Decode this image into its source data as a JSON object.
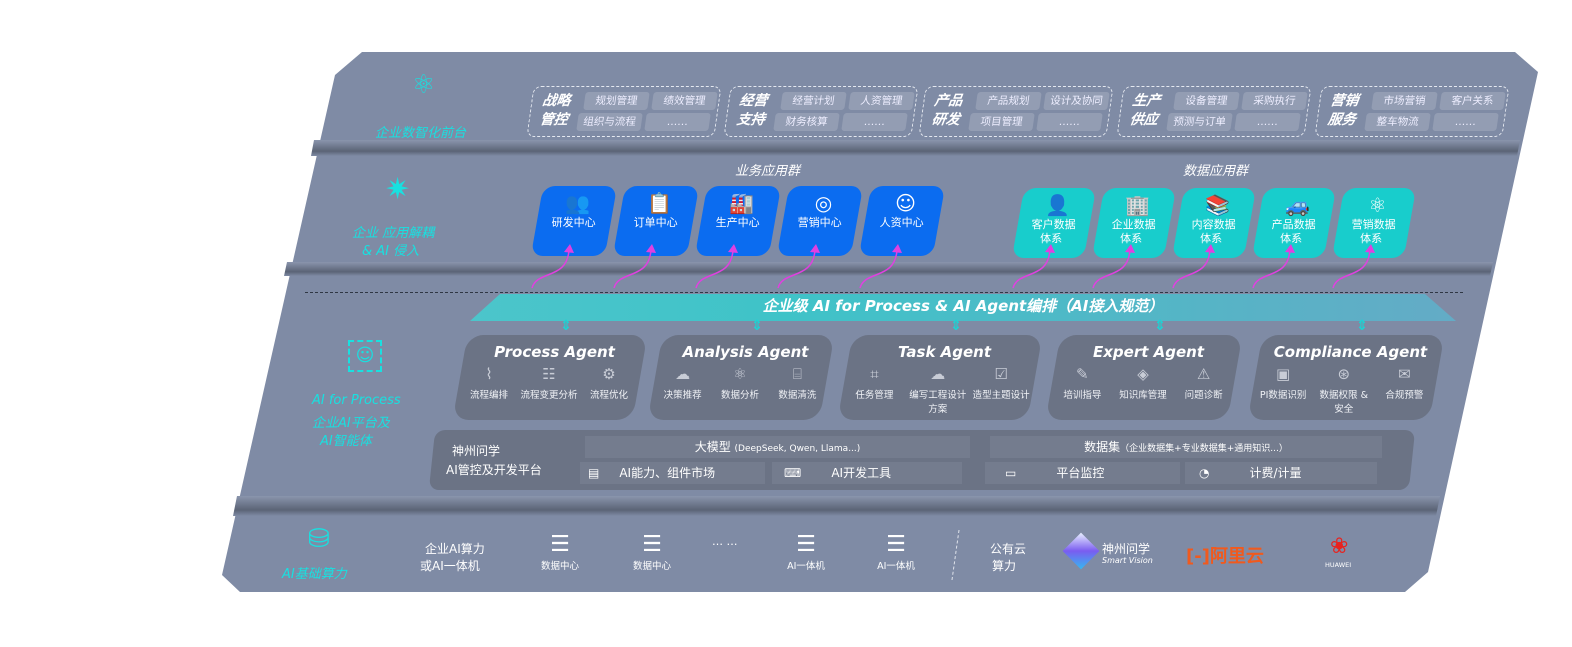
{
  "layers": {
    "frontend": {
      "label": "企业数智化前台",
      "icon": "brain-icon",
      "groups": [
        {
          "title": "战略管控",
          "items": [
            "规划管理",
            "绩效管理",
            "组织与流程",
            "……"
          ]
        },
        {
          "title": "经营支持",
          "items": [
            "经营计划",
            "人资管理",
            "财务核算",
            "……"
          ]
        },
        {
          "title": "产品研发",
          "items": [
            "产品规划",
            "设计及协同",
            "项目管理",
            "……"
          ]
        },
        {
          "title": "生产供应",
          "items": [
            "设备管理",
            "采购执行",
            "预测与订单",
            "……"
          ]
        },
        {
          "title": "营销服务",
          "items": [
            "市场营销",
            "客户关系",
            "整车物流",
            "……"
          ]
        }
      ]
    },
    "apps": {
      "label_line1": "企业 应用解耦",
      "label_line2": "& AI 侵入",
      "icon": "molecule-icon",
      "business_title": "业务应用群",
      "business": [
        {
          "label": "研发中心",
          "icon": "team-icon"
        },
        {
          "label": "订单中心",
          "icon": "clipboard-icon"
        },
        {
          "label": "生产中心",
          "icon": "factory-icon"
        },
        {
          "label": "营销中心",
          "icon": "target-icon"
        },
        {
          "label": "人资中心",
          "icon": "people-icon"
        }
      ],
      "data_title": "数据应用群",
      "data": [
        {
          "label1": "客户数据",
          "label2": "体系",
          "icon": "user-icon"
        },
        {
          "label1": "企业数据",
          "label2": "体系",
          "icon": "building-icon"
        },
        {
          "label1": "内容数据",
          "label2": "体系",
          "icon": "books-icon"
        },
        {
          "label1": "产品数据",
          "label2": "体系",
          "icon": "car-icon"
        },
        {
          "label1": "营销数据",
          "label2": "体系",
          "icon": "atom-icon"
        }
      ]
    },
    "banner": "企业级 AI for Process & AI Agent编排（AI接入规范）",
    "ai": {
      "label_line1": "AI for Process",
      "label_line2": "企业AI平台及",
      "label_line3": "AI智能体",
      "icon": "face-scan-icon",
      "agents": [
        {
          "name": "Process Agent",
          "features": [
            "流程编排",
            "流程变更分析",
            "流程优化"
          ]
        },
        {
          "name": "Analysis Agent",
          "features": [
            "决策推荐",
            "数据分析",
            "数据清洗"
          ]
        },
        {
          "name": "Task Agent",
          "features": [
            "任务管理",
            "编写工程设计方案",
            "造型主题设计"
          ]
        },
        {
          "name": "Expert Agent",
          "features": [
            "培训指导",
            "知识库管理",
            "问题诊断"
          ]
        },
        {
          "name": "Compliance Agent",
          "features": [
            "PI数据识别",
            "数据权限 & 安全",
            "合规预警"
          ]
        }
      ],
      "platform": {
        "title1": "神州问学",
        "title2": "AI管控及开发平台",
        "model": "大模型",
        "model_note": "(DeepSeek, Qwen, Llama...)",
        "dataset": "数据集",
        "dataset_note": "（企业数据集+专业数据集+通用知识...）",
        "tools": [
          "AI能力、组件市场",
          "AI开发工具",
          "平台监控",
          "计费/计量"
        ]
      }
    },
    "infra": {
      "label": "AI基础算力",
      "icon": "database-icon",
      "onprem_line1": "企业AI算力",
      "onprem_line2": "或AI一体机",
      "servers": [
        "数据中心",
        "数据中心",
        "AI一体机",
        "AI一体机"
      ],
      "ellipsis": "… …",
      "cloud_line1": "公有云",
      "cloud_line2": "算力",
      "vendors": {
        "sv_cn": "神州问学",
        "sv_en": "Smart Vision",
        "aliyun": "阿里云",
        "huawei": "HUAWEI"
      }
    }
  },
  "colors": {
    "panel": "#7f8ba5",
    "cyan": "#19e0e0",
    "blue": "#0b6cf0",
    "teal": "#18cdcc",
    "arrow": "#e040e0"
  }
}
